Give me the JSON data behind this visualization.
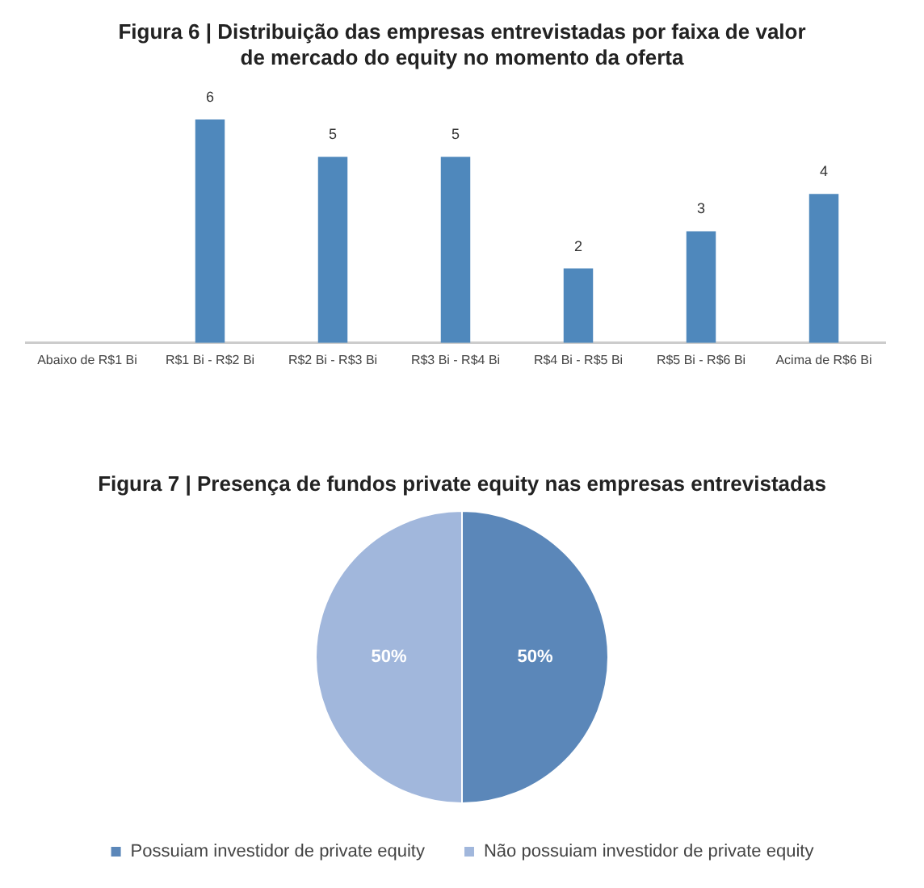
{
  "chart_data": [
    {
      "type": "bar",
      "title": "Figura 6 | Distribuição das empresas entrevistadas por faixa de valor de mercado do equity no momento da oferta",
      "categories": [
        "Abaixo de R$1 Bi",
        "R$1 Bi - R$2 Bi",
        "R$2 Bi - R$3 Bi",
        "R$3 Bi - R$4 Bi",
        "R$4 Bi - R$5 Bi",
        "R$5 Bi - R$6 Bi",
        "Acima de R$6 Bi"
      ],
      "values": [
        0,
        6,
        5,
        5,
        2,
        3,
        4
      ],
      "value_labels": [
        null,
        "6",
        "5",
        "5",
        "2",
        "3",
        "4"
      ],
      "color": "#4f88bc",
      "tick_labels": "x"
    },
    {
      "type": "pie",
      "title": "Figura 7 | Presença de fundos private equity nas empresas entrevistadas",
      "categories": [
        "Possuiam investidor de private equity",
        "Não possuiam investidor de private equity"
      ],
      "values": [
        50,
        50
      ],
      "colors": [
        "#5b87b9",
        "#a1b7dc"
      ],
      "value_labels": [
        "50%",
        "50%"
      ],
      "legend": "bottom"
    }
  ]
}
